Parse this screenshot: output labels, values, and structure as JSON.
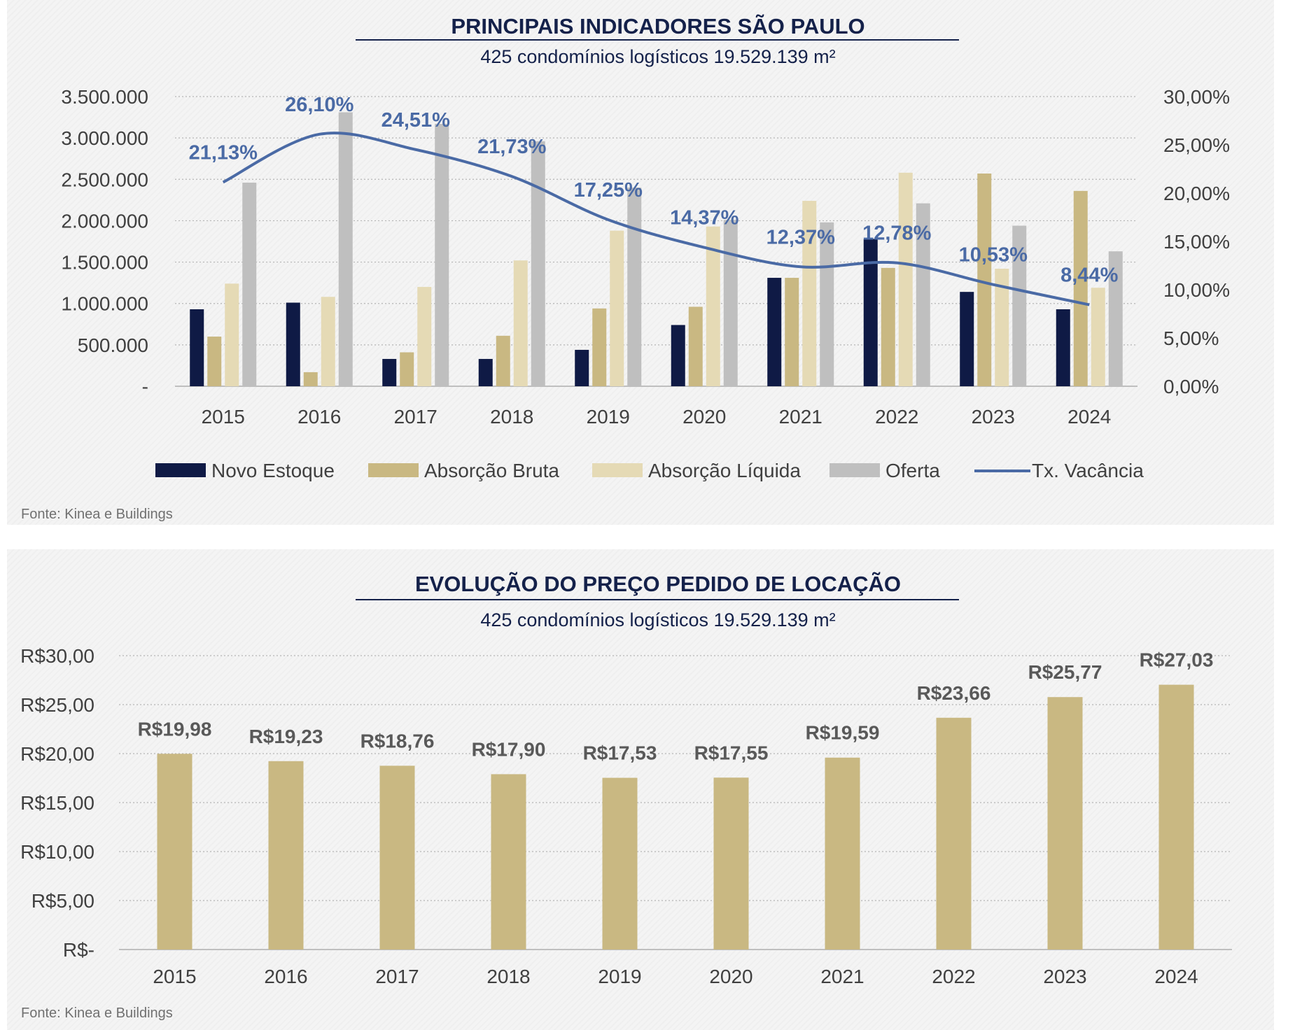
{
  "colors": {
    "novo_estoque": "#0f1a45",
    "absorcao_bruta": "#c9b882",
    "absorcao_liquida": "#e5dab5",
    "oferta": "#bfbfbf",
    "vacancia": "#4a6aa5",
    "title": "#14214a"
  },
  "chart_data": [
    {
      "type": "bar",
      "title": "PRINCIPAIS INDICADORES SÃO PAULO",
      "subtitle": "425 condomínios logísticos 19.529.139 m²",
      "categories": [
        "2015",
        "2016",
        "2017",
        "2018",
        "2019",
        "2020",
        "2021",
        "2022",
        "2023",
        "2024"
      ],
      "ylim": [
        0,
        3500000
      ],
      "y2lim": [
        0,
        30
      ],
      "yticks": [
        "-",
        "500.000",
        "1.000.000",
        "1.500.000",
        "2.000.000",
        "2.500.000",
        "3.000.000",
        "3.500.000"
      ],
      "y2ticks": [
        "0,00%",
        "5,00%",
        "10,00%",
        "15,00%",
        "20,00%",
        "25,00%",
        "30,00%"
      ],
      "series": [
        {
          "name": "Novo Estoque",
          "values": [
            930000,
            1010000,
            330000,
            330000,
            440000,
            740000,
            1310000,
            1780000,
            1140000,
            930000
          ]
        },
        {
          "name": "Absorção Bruta",
          "values": [
            600000,
            170000,
            410000,
            610000,
            940000,
            960000,
            1310000,
            1430000,
            2570000,
            2360000
          ]
        },
        {
          "name": "Absorção Líquida",
          "values": [
            1240000,
            1080000,
            1200000,
            1520000,
            1880000,
            1930000,
            2240000,
            2580000,
            1420000,
            1190000
          ]
        },
        {
          "name": "Oferta",
          "values": [
            2460000,
            3310000,
            3170000,
            2960000,
            2400000,
            2010000,
            1980000,
            2210000,
            1940000,
            1630000
          ]
        }
      ],
      "line_series": {
        "name": "Tx. Vacância",
        "values": [
          21.13,
          26.1,
          24.51,
          21.73,
          17.25,
          14.37,
          12.37,
          12.78,
          10.53,
          8.44
        ],
        "labels": [
          "21,13%",
          "26,10%",
          "24,51%",
          "21,73%",
          "17,25%",
          "14,37%",
          "12,37%",
          "12,78%",
          "10,53%",
          "8,44%"
        ]
      },
      "source": "Fonte: Kinea e Buildings"
    },
    {
      "type": "bar",
      "title": "EVOLUÇÃO DO PREÇO PEDIDO DE LOCAÇÃO",
      "subtitle": "425 condomínios logísticos 19.529.139 m²",
      "categories": [
        "2015",
        "2016",
        "2017",
        "2018",
        "2019",
        "2020",
        "2021",
        "2022",
        "2023",
        "2024"
      ],
      "values": [
        19.98,
        19.23,
        18.76,
        17.9,
        17.53,
        17.55,
        19.59,
        23.66,
        25.77,
        27.03
      ],
      "labels": [
        "R$19,98",
        "R$19,23",
        "R$18,76",
        "R$17,90",
        "R$17,53",
        "R$17,55",
        "R$19,59",
        "R$23,66",
        "R$25,77",
        "R$27,03"
      ],
      "ylim": [
        0,
        30
      ],
      "yticks": [
        "R$-",
        "R$5,00",
        "R$10,00",
        "R$15,00",
        "R$20,00",
        "R$25,00",
        "R$30,00"
      ],
      "source": "Fonte: Kinea e Buildings"
    }
  ]
}
